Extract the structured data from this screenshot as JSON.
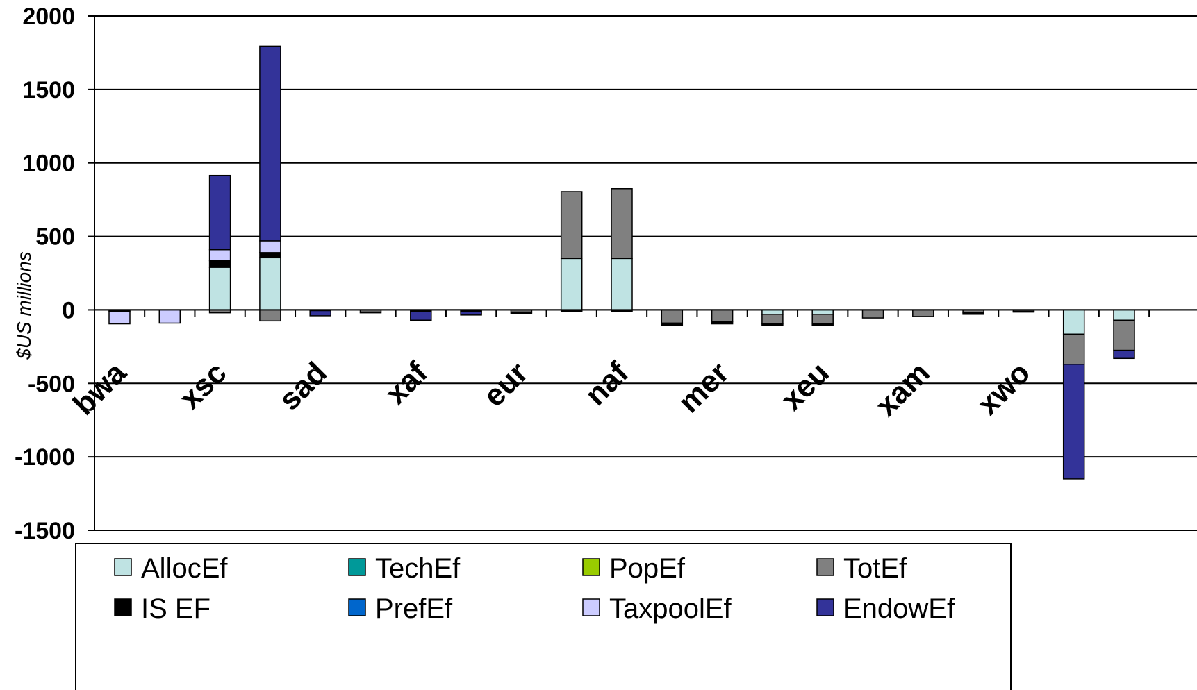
{
  "chart_data": {
    "type": "bar",
    "stacked": true,
    "ylabel": "$US millions",
    "ylim": [
      -1500,
      2000
    ],
    "yticks": [
      2000,
      1500,
      1000,
      500,
      0,
      -500,
      -1000,
      -1500
    ],
    "grid": true,
    "legend_position": "bottom",
    "categories": [
      "bwa",
      "",
      "xsc",
      "",
      "sad",
      "",
      "xaf",
      "",
      "eur",
      "",
      "naf",
      "",
      "mer",
      "",
      "xeu",
      "",
      "xam",
      "",
      "xwo",
      "",
      ""
    ],
    "series": [
      {
        "name": "AllocEf",
        "color": "#bfe3e3",
        "values": [
          0,
          0,
          290,
          355,
          0,
          0,
          0,
          0,
          0,
          350,
          350,
          0,
          0,
          -30,
          -30,
          0,
          0,
          0,
          0,
          -165,
          -70
        ]
      },
      {
        "name": "TechEf",
        "color": "#009999",
        "values": [
          0,
          0,
          0,
          0,
          0,
          0,
          0,
          0,
          0,
          0,
          0,
          0,
          0,
          0,
          0,
          0,
          0,
          0,
          0,
          0,
          0
        ]
      },
      {
        "name": "PopEf",
        "color": "#99cc00",
        "values": [
          0,
          0,
          0,
          0,
          0,
          0,
          0,
          0,
          0,
          0,
          0,
          0,
          0,
          0,
          0,
          0,
          0,
          0,
          0,
          0,
          0
        ]
      },
      {
        "name": "TotEf",
        "color": "#808080",
        "values": [
          0,
          0,
          -20,
          -75,
          0,
          -15,
          0,
          0,
          -15,
          455,
          475,
          -90,
          -80,
          -65,
          -65,
          -55,
          -45,
          -20,
          -10,
          -205,
          -205
        ]
      },
      {
        "name": "IS EF",
        "color": "#000000",
        "values": [
          -10,
          0,
          45,
          35,
          -5,
          -5,
          -10,
          -10,
          -10,
          -10,
          -10,
          -15,
          -15,
          -10,
          -10,
          0,
          0,
          -10,
          -5,
          0,
          0
        ]
      },
      {
        "name": "PrefEf",
        "color": "#0066cc",
        "values": [
          0,
          0,
          0,
          0,
          0,
          0,
          0,
          0,
          0,
          0,
          0,
          0,
          0,
          0,
          0,
          0,
          0,
          0,
          0,
          0,
          0
        ]
      },
      {
        "name": "TaxpoolEf",
        "color": "#ccccff",
        "values": [
          -85,
          -90,
          75,
          80,
          0,
          0,
          0,
          0,
          0,
          0,
          0,
          0,
          0,
          0,
          0,
          0,
          0,
          0,
          0,
          0,
          0
        ]
      },
      {
        "name": "EndowEf",
        "color": "#333399",
        "values": [
          0,
          0,
          505,
          1325,
          -35,
          0,
          -60,
          -25,
          0,
          0,
          0,
          0,
          0,
          0,
          0,
          0,
          0,
          0,
          0,
          -780,
          -55
        ]
      }
    ]
  }
}
